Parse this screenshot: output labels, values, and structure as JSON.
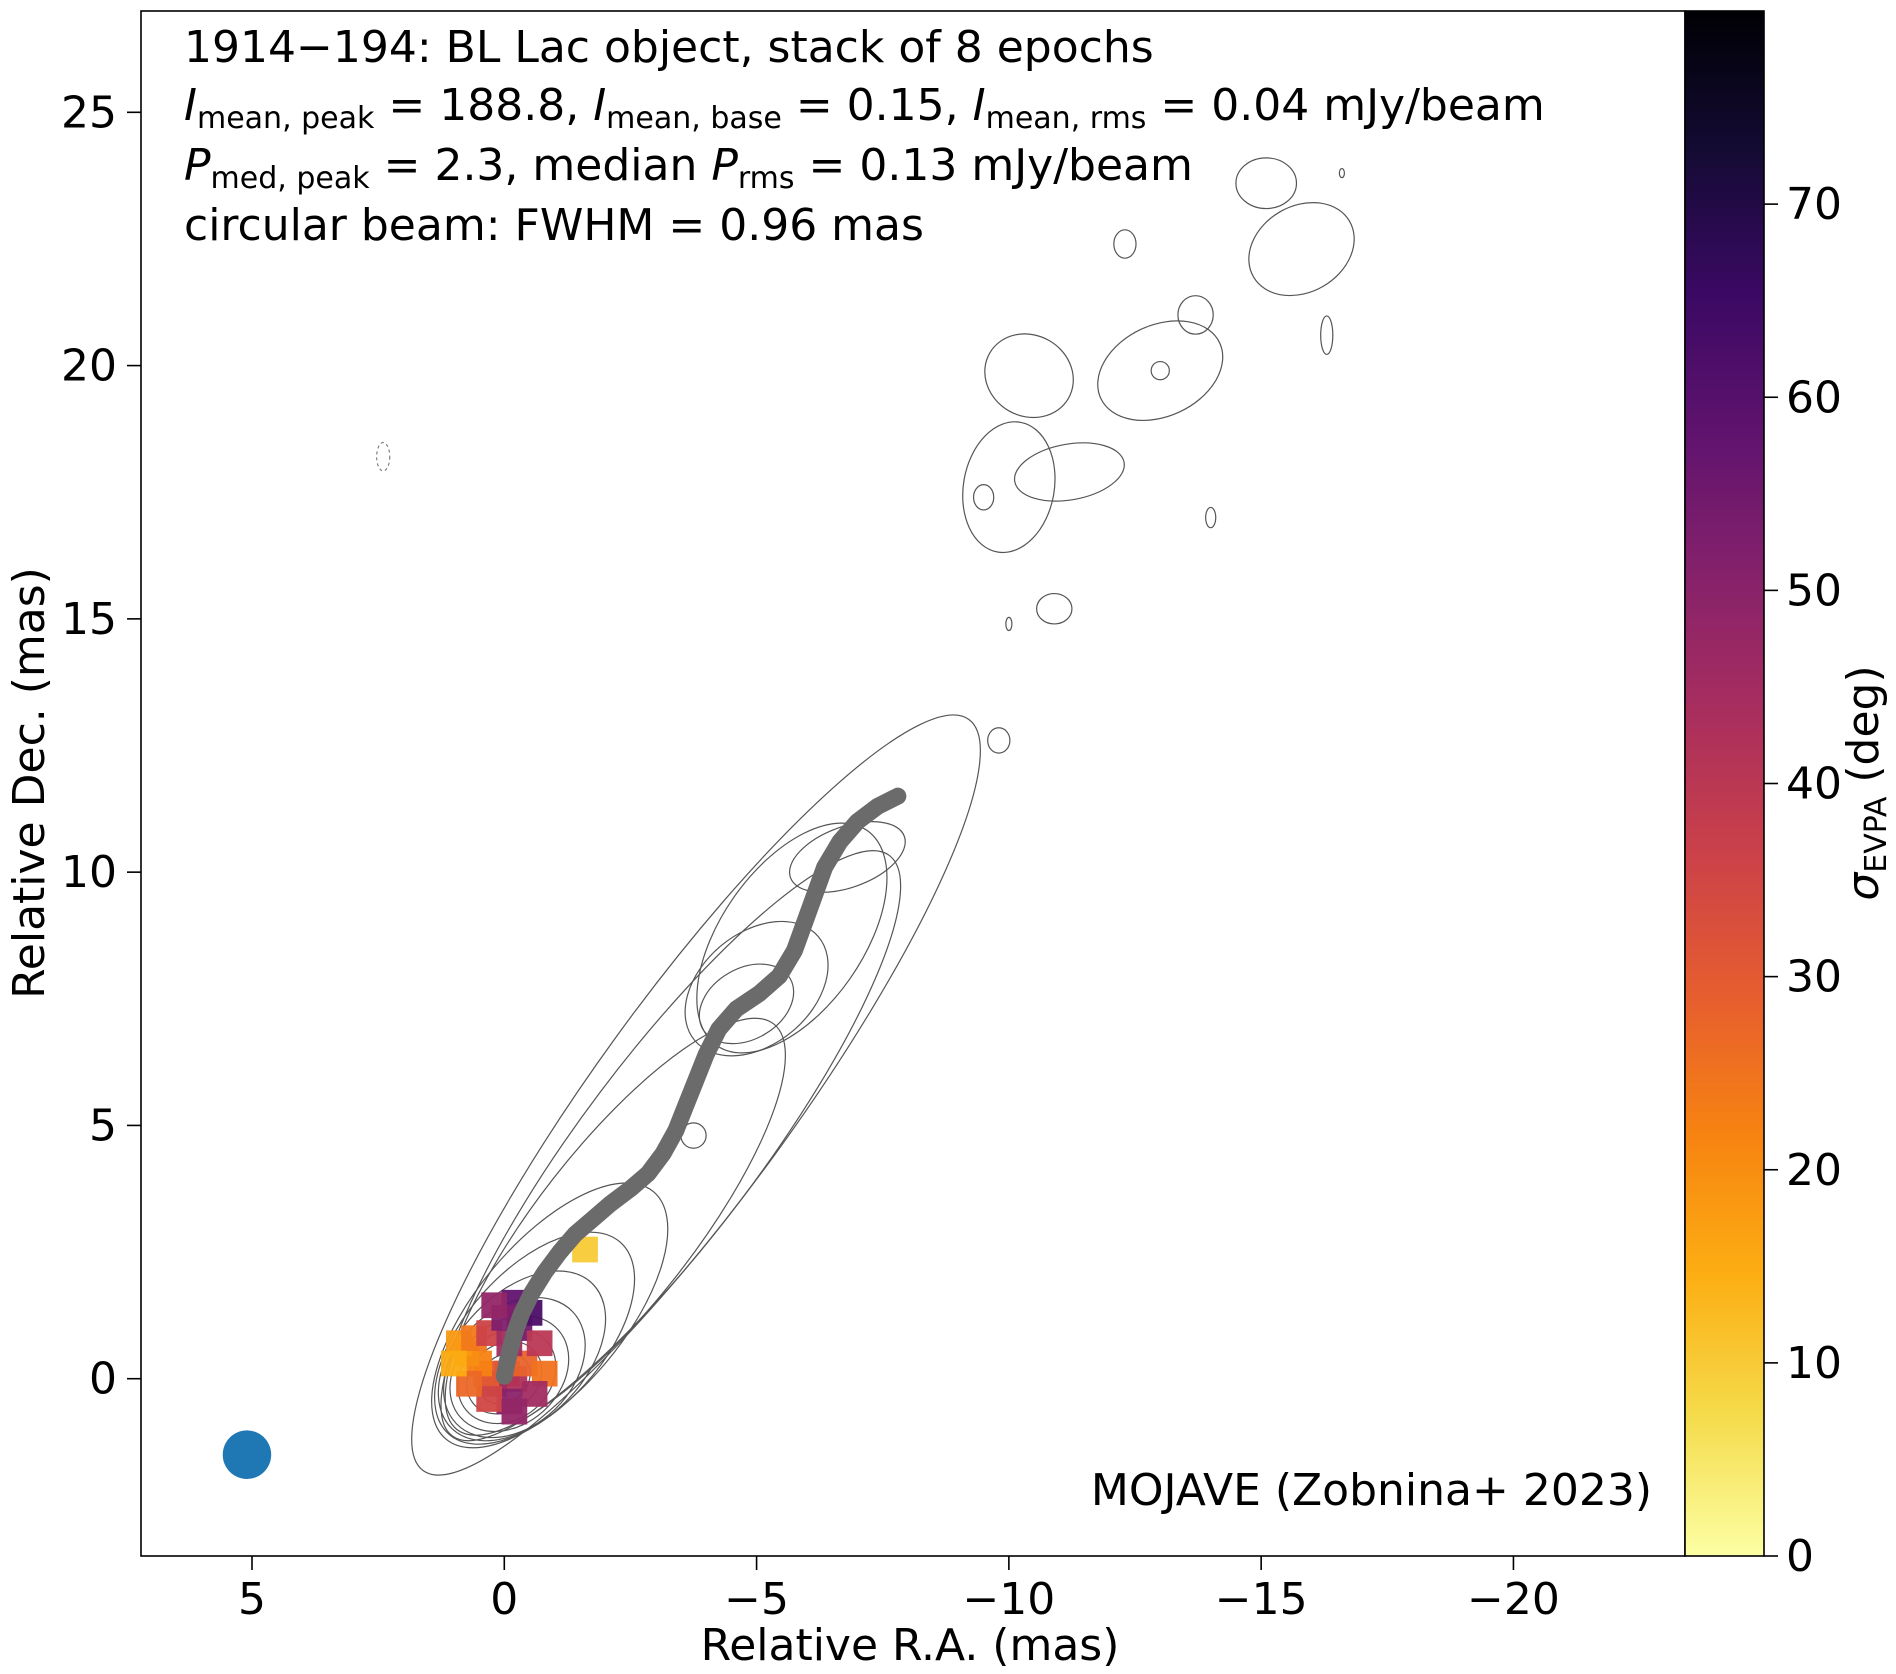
{
  "chart_data": {
    "type": "scatter",
    "title_lines": [
      "1914−194: BL Lac object, stack of 8 epochs",
      "I_mean,peak = 188.8, I_mean,base = 0.15, I_mean,rms = 0.04 mJy/beam",
      "P_med,peak = 2.3, median P_rms = 0.13 mJy/beam",
      "circular beam: FWHM = 0.96 mas"
    ],
    "title": {
      "line1": "1914−194: BL Lac object, stack of 8 epochs",
      "line2": {
        "I": "I",
        "sub_peak": "mean, peak",
        "peak_val": " = 188.8, ",
        "sub_base": "mean, base",
        "base_val": " = 0.15, ",
        "sub_rms": "mean, rms",
        "rms_val": " = 0.04 mJy/beam"
      },
      "line3": {
        "P": "P",
        "sub_peak": "med, peak",
        "peak_val": " = 2.3, median ",
        "sub_rms": "rms",
        "rms_val": " = 0.13 mJy/beam"
      },
      "line4": "circular beam: FWHM = 0.96 mas"
    },
    "annotation": "MOJAVE (Zobnina+ 2023)",
    "xlabel": "Relative R.A. (mas)",
    "ylabel": "Relative Dec. (mas)",
    "xlim": [
      7.2,
      -23.4
    ],
    "ylim": [
      -3.5,
      27.0
    ],
    "x_ticks": [
      5,
      0,
      -5,
      -10,
      -15,
      -20
    ],
    "x_tick_labels": [
      "5",
      "0",
      "−5",
      "−10",
      "−15",
      "−20"
    ],
    "y_ticks": [
      0,
      5,
      10,
      15,
      20,
      25
    ],
    "y_tick_labels": [
      "0",
      "5",
      "10",
      "15",
      "20",
      "25"
    ],
    "colorbar": {
      "label_symbol": "σ",
      "label_sub": "EVPA",
      "label_unit": " (deg)",
      "range": [
        0,
        80
      ],
      "ticks": [
        0,
        10,
        20,
        30,
        40,
        50,
        60,
        70
      ],
      "tick_labels": [
        "0",
        "10",
        "20",
        "30",
        "40",
        "50",
        "60",
        "70"
      ],
      "colormap": "inferno_r",
      "stops": [
        "#fcffa4",
        "#f5db4b",
        "#fcae12",
        "#f78311",
        "#e65d2f",
        "#cb4149",
        "#a92e5e",
        "#85216b",
        "#5f136e",
        "#3a0963",
        "#140b34",
        "#000004"
      ]
    },
    "beam": {
      "x": 5.1,
      "y": -1.5,
      "fwhm": 0.96,
      "color": "#1f77b4"
    },
    "ridgeline": {
      "color": "#6b6b6b",
      "points": [
        [
          0.0,
          0.05
        ],
        [
          -0.05,
          0.3
        ],
        [
          -0.12,
          0.6
        ],
        [
          -0.22,
          0.95
        ],
        [
          -0.35,
          1.3
        ],
        [
          -0.55,
          1.7
        ],
        [
          -0.8,
          2.1
        ],
        [
          -1.1,
          2.5
        ],
        [
          -1.4,
          2.85
        ],
        [
          -1.75,
          3.15
        ],
        [
          -2.1,
          3.45
        ],
        [
          -2.5,
          3.75
        ],
        [
          -2.85,
          4.05
        ],
        [
          -3.15,
          4.45
        ],
        [
          -3.4,
          4.9
        ],
        [
          -3.6,
          5.4
        ],
        [
          -3.8,
          5.9
        ],
        [
          -4.0,
          6.4
        ],
        [
          -4.25,
          6.9
        ],
        [
          -4.6,
          7.3
        ],
        [
          -5.05,
          7.6
        ],
        [
          -5.45,
          7.95
        ],
        [
          -5.75,
          8.45
        ],
        [
          -5.95,
          9.0
        ],
        [
          -6.15,
          9.55
        ],
        [
          -6.35,
          10.1
        ],
        [
          -6.65,
          10.6
        ],
        [
          -7.0,
          11.0
        ],
        [
          -7.4,
          11.3
        ],
        [
          -7.8,
          11.5
        ]
      ]
    },
    "evpa_pixels": [
      {
        "x": -0.05,
        "y": 0.1,
        "v": 38
      },
      {
        "x": -0.2,
        "y": 0.0,
        "v": 42
      },
      {
        "x": 0.2,
        "y": -0.1,
        "v": 45
      },
      {
        "x": 0.35,
        "y": 0.1,
        "v": 30
      },
      {
        "x": -0.4,
        "y": 0.3,
        "v": 28
      },
      {
        "x": 0.5,
        "y": 0.3,
        "v": 22
      },
      {
        "x": 0.75,
        "y": 0.5,
        "v": 20
      },
      {
        "x": 0.9,
        "y": 0.7,
        "v": 18
      },
      {
        "x": 0.6,
        "y": 0.8,
        "v": 24
      },
      {
        "x": 0.3,
        "y": 0.9,
        "v": 36
      },
      {
        "x": -0.1,
        "y": 0.7,
        "v": 45
      },
      {
        "x": -0.3,
        "y": 1.0,
        "v": 55
      },
      {
        "x": -0.5,
        "y": 1.3,
        "v": 62
      },
      {
        "x": -0.2,
        "y": 1.5,
        "v": 58
      },
      {
        "x": 0.0,
        "y": 1.2,
        "v": 52
      },
      {
        "x": 0.2,
        "y": 1.45,
        "v": 48
      },
      {
        "x": -0.7,
        "y": 0.7,
        "v": 40
      },
      {
        "x": -0.8,
        "y": 0.1,
        "v": 25
      },
      {
        "x": -0.6,
        "y": -0.3,
        "v": 45
      },
      {
        "x": -0.1,
        "y": -0.45,
        "v": 50
      },
      {
        "x": 0.3,
        "y": -0.4,
        "v": 35
      },
      {
        "x": 0.7,
        "y": -0.1,
        "v": 27
      },
      {
        "x": 1.0,
        "y": 0.3,
        "v": 15
      },
      {
        "x": -0.2,
        "y": -0.65,
        "v": 48
      },
      {
        "x": -1.6,
        "y": 2.55,
        "v": 10
      }
    ],
    "contours": [
      {
        "id": "core-1",
        "cx": 0.0,
        "cy": 0.0,
        "rx": 0.55,
        "ry": 0.45,
        "rot": -40
      },
      {
        "id": "core-2",
        "cx": 0.0,
        "cy": 0.02,
        "rx": 0.8,
        "ry": 0.65,
        "rot": -40
      },
      {
        "id": "core-3",
        "cx": -0.05,
        "cy": 0.05,
        "rx": 1.05,
        "ry": 0.85,
        "rot": -40
      },
      {
        "id": "core-4",
        "cx": -0.1,
        "cy": 0.1,
        "rx": 1.3,
        "ry": 1.0,
        "rot": -42
      },
      {
        "id": "core-5",
        "cx": -0.2,
        "cy": 0.22,
        "rx": 1.6,
        "ry": 1.15,
        "rot": -44
      },
      {
        "id": "core-6",
        "cx": -0.35,
        "cy": 0.45,
        "rx": 2.0,
        "ry": 1.25,
        "rot": -46
      },
      {
        "id": "core-7",
        "cx": -0.6,
        "cy": 0.8,
        "rx": 2.55,
        "ry": 1.35,
        "rot": -48
      },
      {
        "id": "core-8",
        "cx": -0.9,
        "cy": 1.25,
        "rx": 3.2,
        "ry": 1.45,
        "rot": -50
      },
      {
        "id": "jet-1",
        "cx": -2.2,
        "cy": 3.0,
        "rx": 5.1,
        "ry": 1.55,
        "rot": -52
      },
      {
        "id": "jet-2",
        "cx": -3.3,
        "cy": 4.6,
        "rx": 7.2,
        "ry": 1.75,
        "rot": -53
      },
      {
        "id": "jet-3",
        "cx": -3.8,
        "cy": 5.6,
        "rx": 9.2,
        "ry": 1.95,
        "rot": -54
      },
      {
        "id": "knot-a",
        "cx": -4.8,
        "cy": 7.4,
        "rx": 1.0,
        "ry": 0.7,
        "rot": -30
      },
      {
        "id": "knot-a2",
        "cx": -5.0,
        "cy": 7.7,
        "rx": 1.6,
        "ry": 1.1,
        "rot": -40
      },
      {
        "id": "knot-b",
        "cx": -6.8,
        "cy": 10.3,
        "rx": 1.2,
        "ry": 0.6,
        "rot": -20
      },
      {
        "id": "knot-c",
        "cx": -5.7,
        "cy": 8.7,
        "rx": 2.6,
        "ry": 1.4,
        "rot": -55
      },
      {
        "id": "blob-1",
        "cx": -3.75,
        "cy": 4.8,
        "rx": 0.25,
        "ry": 0.25,
        "rot": 0
      },
      {
        "id": "blob-2",
        "cx": -9.8,
        "cy": 12.6,
        "rx": 0.22,
        "ry": 0.25,
        "rot": 0
      },
      {
        "id": "blob-3",
        "cx": -10.9,
        "cy": 15.2,
        "rx": 0.35,
        "ry": 0.3,
        "rot": 0
      },
      {
        "id": "blob-4",
        "cx": -10.0,
        "cy": 17.6,
        "rx": 0.9,
        "ry": 1.3,
        "rot": 10
      },
      {
        "id": "blob-5",
        "cx": -9.5,
        "cy": 17.4,
        "rx": 0.2,
        "ry": 0.25,
        "rot": 0
      },
      {
        "id": "blob-6",
        "cx": -11.2,
        "cy": 17.9,
        "rx": 1.1,
        "ry": 0.55,
        "rot": -10
      },
      {
        "id": "blob-7",
        "cx": -10.4,
        "cy": 19.8,
        "rx": 0.9,
        "ry": 0.8,
        "rot": 30
      },
      {
        "id": "blob-8",
        "cx": -13.0,
        "cy": 19.9,
        "rx": 1.3,
        "ry": 0.9,
        "rot": -25
      },
      {
        "id": "blob-9",
        "cx": -13.0,
        "cy": 19.9,
        "rx": 0.18,
        "ry": 0.18,
        "rot": 0
      },
      {
        "id": "blob-10",
        "cx": -13.7,
        "cy": 21.0,
        "rx": 0.35,
        "ry": 0.38,
        "rot": 0
      },
      {
        "id": "blob-11",
        "cx": -15.8,
        "cy": 22.3,
        "rx": 1.1,
        "ry": 0.85,
        "rot": -30
      },
      {
        "id": "blob-12",
        "cx": -15.1,
        "cy": 23.6,
        "rx": 0.6,
        "ry": 0.5,
        "rot": 0
      },
      {
        "id": "blob-13",
        "cx": -12.3,
        "cy": 22.4,
        "rx": 0.22,
        "ry": 0.28,
        "rot": 0
      },
      {
        "id": "blob-14",
        "cx": -16.3,
        "cy": 20.6,
        "rx": 0.12,
        "ry": 0.38,
        "rot": 0
      },
      {
        "id": "blob-15",
        "cx": -14.0,
        "cy": 17.0,
        "rx": 0.1,
        "ry": 0.2,
        "rot": 0
      },
      {
        "id": "blob-16",
        "cx": -10.0,
        "cy": 14.9,
        "rx": 0.06,
        "ry": 0.13,
        "rot": 0
      },
      {
        "id": "blob-17",
        "cx": -16.6,
        "cy": 23.8,
        "rx": 0.05,
        "ry": 0.09,
        "rot": 0
      }
    ],
    "negative_contours": [
      {
        "id": "neg-1",
        "cx": 2.4,
        "cy": 18.2,
        "rx": 0.13,
        "ry": 0.28,
        "rot": 0
      }
    ],
    "grid": false,
    "legend": "none"
  }
}
